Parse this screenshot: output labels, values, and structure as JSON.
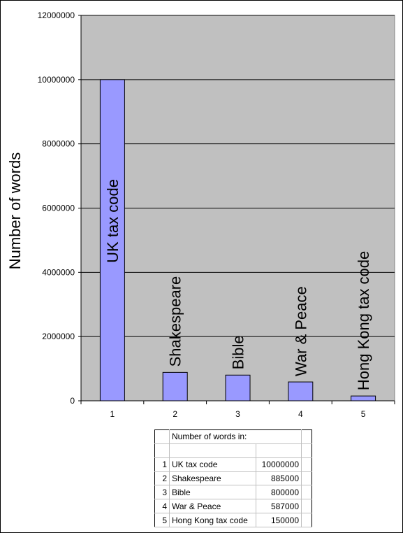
{
  "chart_data": {
    "type": "bar",
    "categories": [
      "1",
      "2",
      "3",
      "4",
      "5"
    ],
    "values": [
      10000000,
      885000,
      800000,
      587000,
      150000
    ],
    "bar_labels": [
      "UK tax code",
      "Shakespeare",
      "Bible",
      "War & Peace",
      "Hong Kong tax code"
    ],
    "ylabel": "Number of words",
    "xlabel": "",
    "title": "",
    "ylim": [
      0,
      12000000
    ],
    "yticks": [
      0,
      2000000,
      4000000,
      6000000,
      8000000,
      10000000,
      12000000
    ],
    "grid": true,
    "legend": "none",
    "colors": {
      "bar": "#9999ff",
      "plot_background": "#c0c0c0",
      "gridline": "#000000"
    }
  },
  "table": {
    "header": "Number of words in:",
    "rows": [
      {
        "index": "1",
        "name": "UK tax code",
        "value": "10000000"
      },
      {
        "index": "2",
        "name": "Shakespeare",
        "value": "885000"
      },
      {
        "index": "3",
        "name": "Bible",
        "value": "800000"
      },
      {
        "index": "4",
        "name": "War & Peace",
        "value": "587000"
      },
      {
        "index": "5",
        "name": "Hong Kong tax code",
        "value": "150000"
      }
    ]
  }
}
